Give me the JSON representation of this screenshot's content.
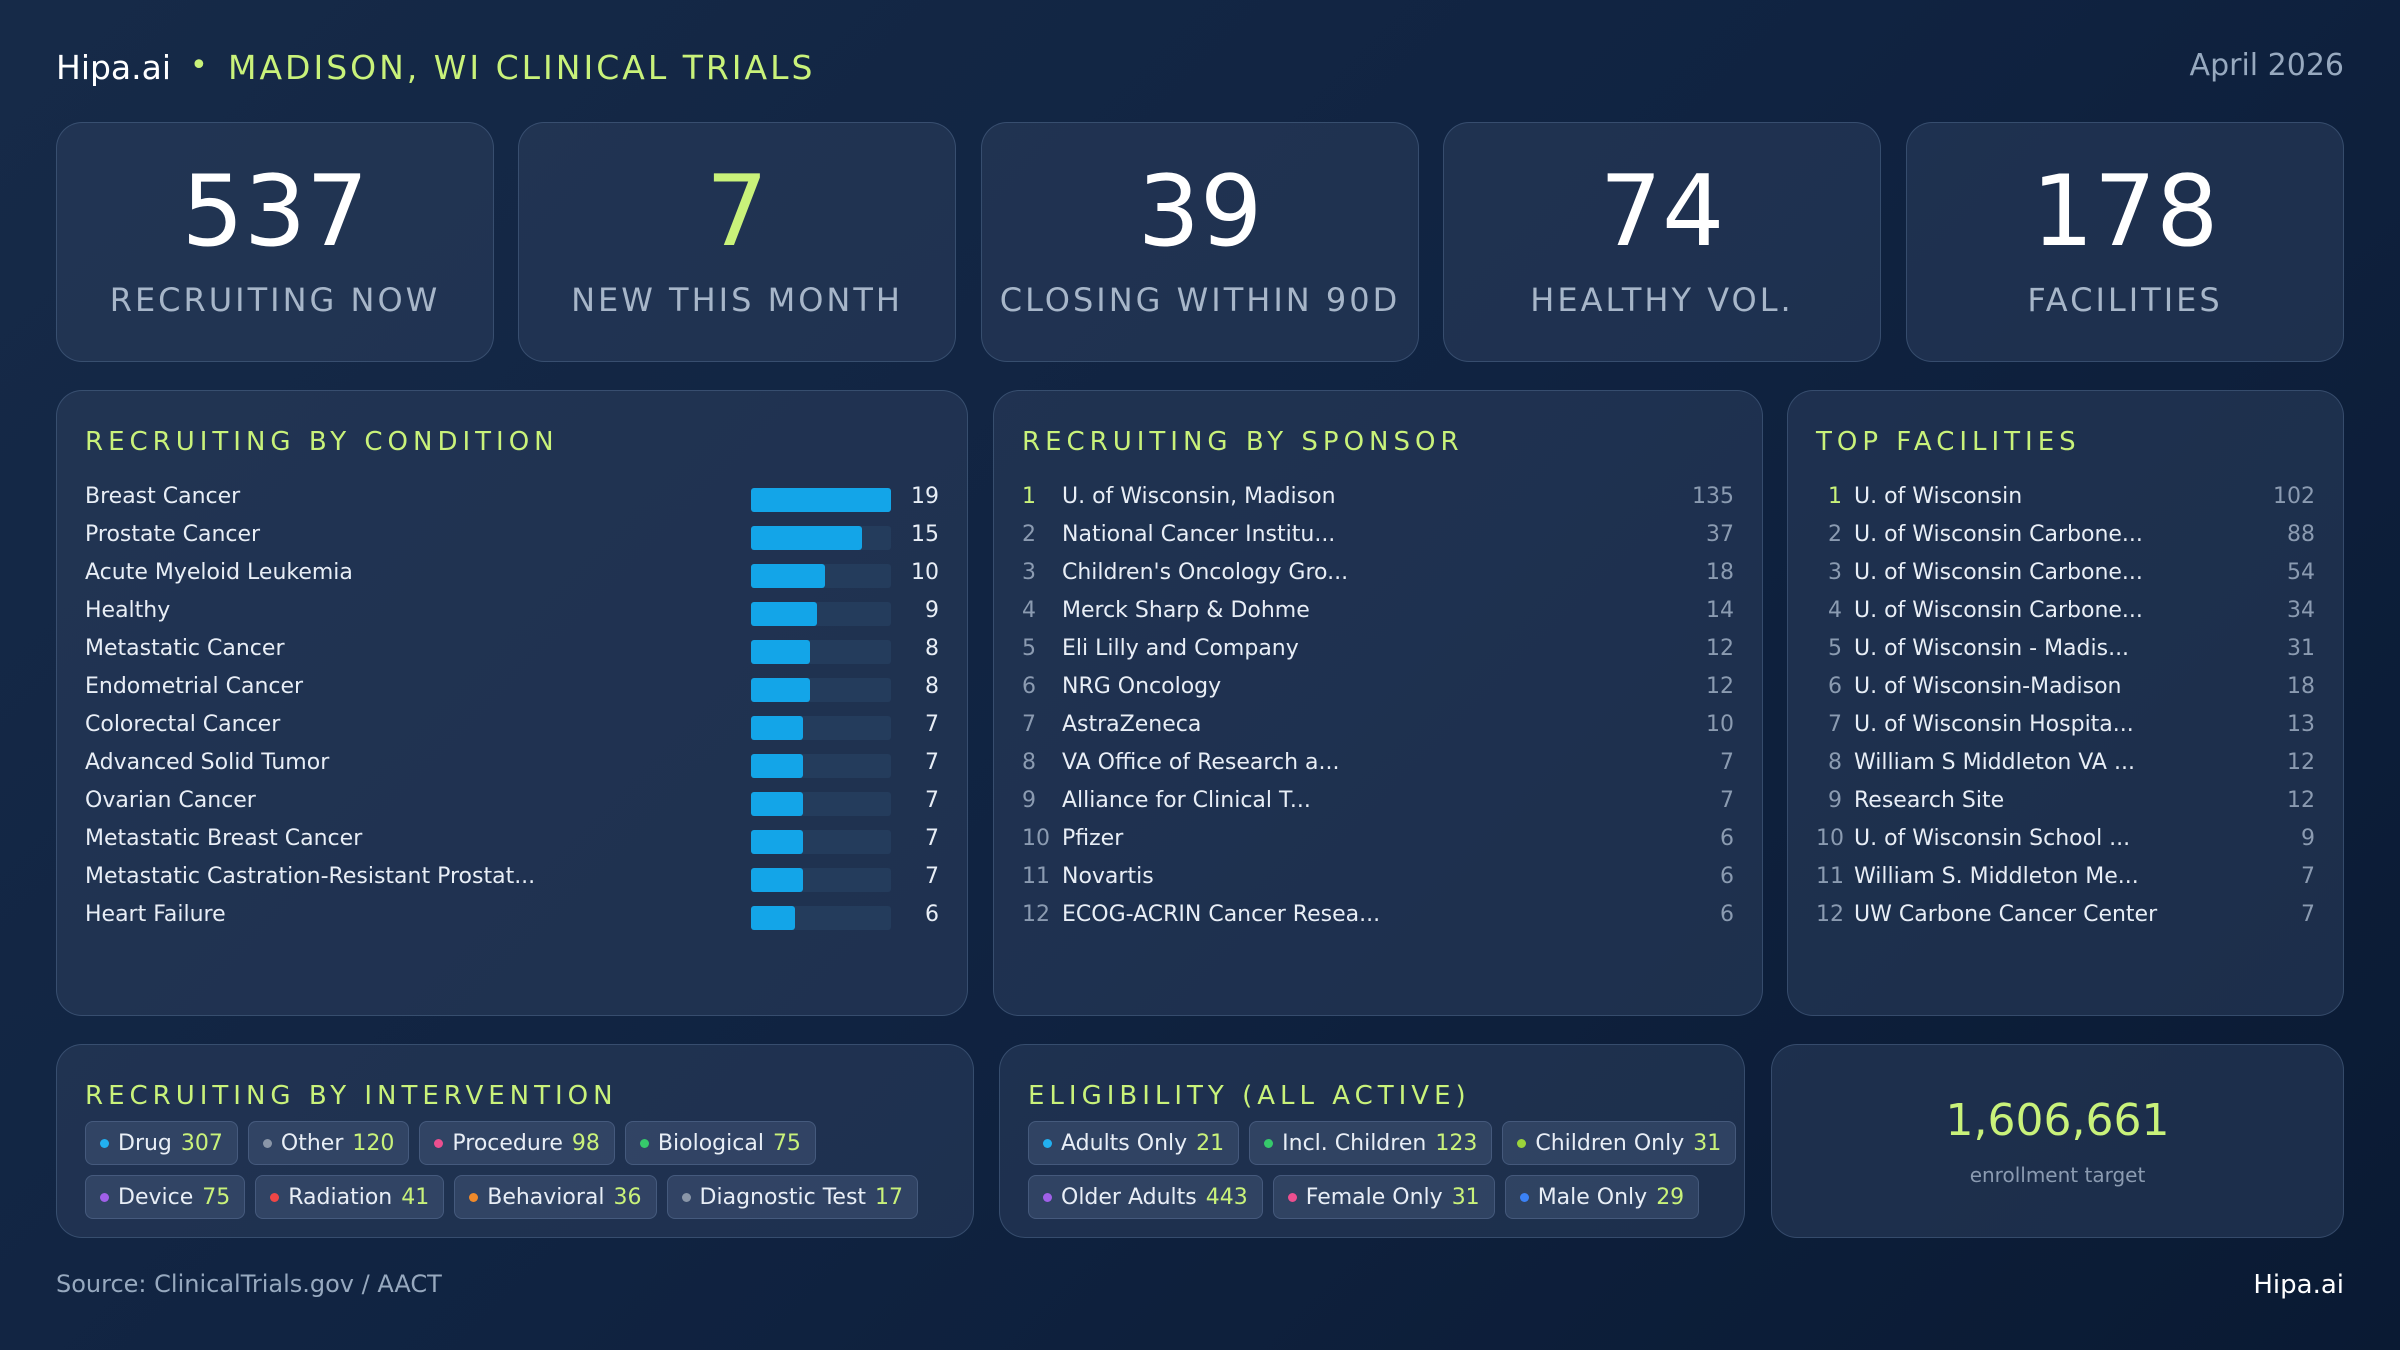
{
  "header": {
    "brand": "Hipa.ai",
    "separator": "•",
    "title": "MADISON, WI CLINICAL TRIALS",
    "date": "April 2026"
  },
  "stats": [
    {
      "value": "537",
      "label": "RECRUITING NOW"
    },
    {
      "value": "7",
      "label": "NEW THIS MONTH"
    },
    {
      "value": "39",
      "label": "CLOSING WITHIN 90D"
    },
    {
      "value": "74",
      "label": "HEALTHY VOL."
    },
    {
      "value": "178",
      "label": "FACILITIES"
    }
  ],
  "condition": {
    "title": "RECRUITING BY CONDITION",
    "items": [
      {
        "name": "Breast Cancer",
        "count": 19
      },
      {
        "name": "Prostate Cancer",
        "count": 15
      },
      {
        "name": "Acute Myeloid Leukemia",
        "count": 10
      },
      {
        "name": "Healthy",
        "count": 9
      },
      {
        "name": "Metastatic Cancer",
        "count": 8
      },
      {
        "name": "Endometrial Cancer",
        "count": 8
      },
      {
        "name": "Colorectal Cancer",
        "count": 7
      },
      {
        "name": "Advanced Solid Tumor",
        "count": 7
      },
      {
        "name": "Ovarian Cancer",
        "count": 7
      },
      {
        "name": "Metastatic Breast Cancer",
        "count": 7
      },
      {
        "name": "Metastatic Castration-Resistant Prostat...",
        "count": 7
      },
      {
        "name": "Heart Failure",
        "count": 6
      }
    ]
  },
  "sponsor": {
    "title": "RECRUITING BY SPONSOR",
    "items": [
      {
        "rank": "1",
        "name": "U. of Wisconsin, Madison",
        "count": "135"
      },
      {
        "rank": "2",
        "name": "National Cancer Institu...",
        "count": "37"
      },
      {
        "rank": "3",
        "name": "Children's Oncology Gro...",
        "count": "18"
      },
      {
        "rank": "4",
        "name": "Merck Sharp & Dohme",
        "count": "14"
      },
      {
        "rank": "5",
        "name": "Eli Lilly and Company",
        "count": "12"
      },
      {
        "rank": "6",
        "name": "NRG Oncology",
        "count": "12"
      },
      {
        "rank": "7",
        "name": "AstraZeneca",
        "count": "10"
      },
      {
        "rank": "8",
        "name": "VA Office of Research a...",
        "count": "7"
      },
      {
        "rank": "9",
        "name": "Alliance for Clinical T...",
        "count": "7"
      },
      {
        "rank": "10",
        "name": "Pfizer",
        "count": "6"
      },
      {
        "rank": "11",
        "name": "Novartis",
        "count": "6"
      },
      {
        "rank": "12",
        "name": "ECOG-ACRIN Cancer Resea...",
        "count": "6"
      }
    ]
  },
  "facilities": {
    "title": "TOP FACILITIES",
    "items": [
      {
        "rank": "1",
        "name": "U. of Wisconsin",
        "count": "102"
      },
      {
        "rank": "2",
        "name": "U. of Wisconsin Carbone...",
        "count": "88"
      },
      {
        "rank": "3",
        "name": "U. of Wisconsin Carbone...",
        "count": "54"
      },
      {
        "rank": "4",
        "name": "U. of Wisconsin Carbone...",
        "count": "34"
      },
      {
        "rank": "5",
        "name": "U. of Wisconsin - Madis...",
        "count": "31"
      },
      {
        "rank": "6",
        "name": "U. of Wisconsin-Madison",
        "count": "18"
      },
      {
        "rank": "7",
        "name": "U. of Wisconsin Hospita...",
        "count": "13"
      },
      {
        "rank": "8",
        "name": "William S Middleton VA ...",
        "count": "12"
      },
      {
        "rank": "9",
        "name": "Research Site",
        "count": "12"
      },
      {
        "rank": "10",
        "name": "U. of Wisconsin School ...",
        "count": "9"
      },
      {
        "rank": "11",
        "name": "William S. Middleton Me...",
        "count": "7"
      },
      {
        "rank": "12",
        "name": "UW Carbone Cancer Center",
        "count": "7"
      }
    ]
  },
  "intervention": {
    "title": "RECRUITING BY INTERVENTION",
    "rows": [
      [
        {
          "label": "Drug",
          "value": "307",
          "color": "#22b0f0"
        },
        {
          "label": "Other",
          "value": "120",
          "color": "#8a96a8"
        },
        {
          "label": "Procedure",
          "value": "98",
          "color": "#ec4f8f"
        },
        {
          "label": "Biological",
          "value": "75",
          "color": "#36c96b"
        }
      ],
      [
        {
          "label": "Device",
          "value": "75",
          "color": "#a060e8"
        },
        {
          "label": "Radiation",
          "value": "41",
          "color": "#ef4646"
        },
        {
          "label": "Behavioral",
          "value": "36",
          "color": "#f08a2a"
        },
        {
          "label": "Diagnostic Test",
          "value": "17",
          "color": "#8a96a8"
        }
      ]
    ]
  },
  "eligibility": {
    "title": "ELIGIBILITY (ALL ACTIVE)",
    "rows": [
      [
        {
          "label": "Adults Only",
          "value": "21",
          "color": "#22b0f0"
        },
        {
          "label": "Incl. Children",
          "value": "123",
          "color": "#36c96b"
        },
        {
          "label": "Children Only",
          "value": "31",
          "color": "#9bd43a"
        }
      ],
      [
        {
          "label": "Older Adults",
          "value": "443",
          "color": "#a060e8"
        },
        {
          "label": "Female Only",
          "value": "31",
          "color": "#ec4f8f"
        },
        {
          "label": "Male Only",
          "value": "29",
          "color": "#3b82f6"
        }
      ]
    ]
  },
  "enrollment": {
    "value": "1,606,661",
    "label": "enrollment target"
  },
  "footer": {
    "source": "Source: ClinicalTrials.gov / AACT",
    "brand": "Hipa.ai"
  },
  "colors": {
    "accent": "#c9f27a",
    "bar": "#13a5e8"
  }
}
